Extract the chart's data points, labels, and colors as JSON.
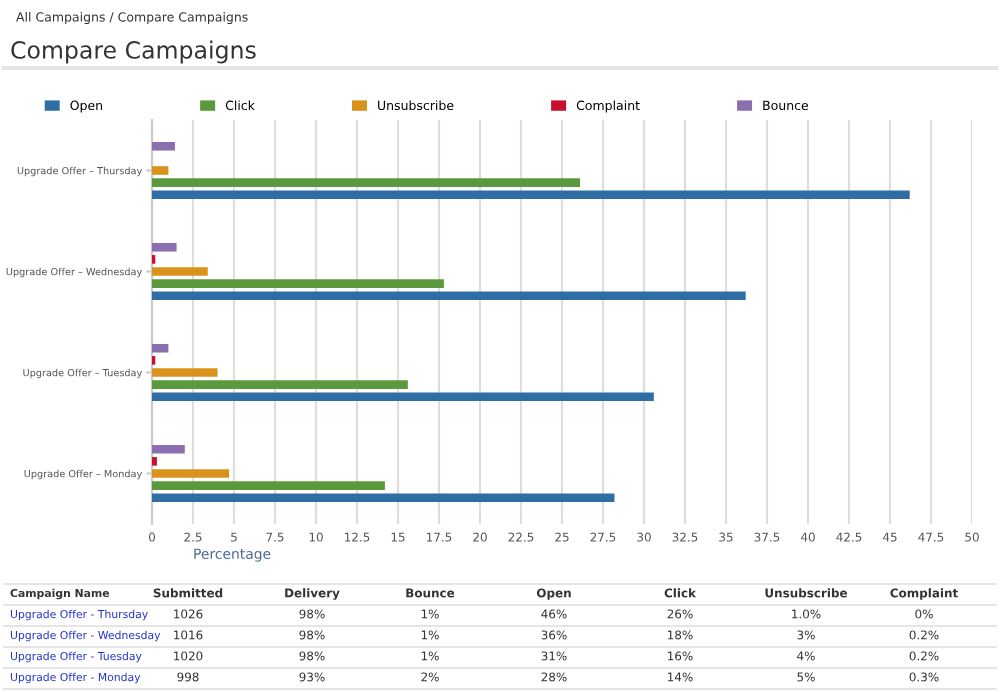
{
  "chart_data": {
    "type": "bar",
    "orientation": "horizontal",
    "title": "Compare Campaigns",
    "xlabel": "Percentage",
    "categories": [
      "Upgrade Offer – Thursday",
      "Upgrade Offer – Wednesday",
      "Upgrade Offer – Tuesday",
      "Upgrade Offer – Monday"
    ],
    "series": [
      {
        "name": "Open",
        "color": "#2f6ea5",
        "values": [
          46.2,
          36.2,
          30.6,
          28.2
        ]
      },
      {
        "name": "Click",
        "color": "#5b9a3c",
        "values": [
          26.1,
          17.8,
          15.6,
          14.2
        ]
      },
      {
        "name": "Unsubscribe",
        "color": "#d9921c",
        "values": [
          1.0,
          3.4,
          4.0,
          4.7
        ]
      },
      {
        "name": "Complaint",
        "color": "#c8102e",
        "values": [
          0,
          0.2,
          0.2,
          0.3
        ]
      },
      {
        "name": "Bounce",
        "color": "#8a6fb0",
        "values": [
          1.4,
          1.5,
          1.0,
          2.0
        ]
      }
    ],
    "xlim": [
      0,
      50
    ],
    "xticks": [
      0,
      {
        "value": 2.5,
        "label": "2.5"
      },
      5,
      {
        "value": 7.5,
        "label": "7.5"
      },
      10,
      {
        "value": 12.5,
        "label": "12.5"
      },
      15,
      {
        "value": 17.5,
        "label": "17.5"
      },
      20,
      {
        "value": 22.5,
        "label": "22.5"
      },
      25,
      {
        "value": 27.5,
        "label": "27.5"
      },
      30,
      {
        "value": 32.5,
        "label": "32.5"
      },
      35,
      {
        "value": 37.5,
        "label": "37.5"
      },
      40,
      {
        "value": 42.5,
        "label": "42.5"
      },
      45,
      {
        "value": 47.5,
        "label": "47.5"
      },
      50
    ],
    "grid": "x",
    "legend": "top",
    "annotations": [
      "All Campaigns / Compare Campaigns",
      "Campaign Name",
      "Submitted",
      "Delivery",
      "Bounce",
      "Open",
      "Click",
      "Unsubscribe",
      "Complaint",
      "Upgrade Offer - Thursday",
      "1026",
      "98%",
      "1%",
      "46%",
      "26%",
      "1.0%",
      "0%",
      "Upgrade Offer - Wednesday",
      "1016",
      "98%",
      "1%",
      "36%",
      "18%",
      "3%",
      "0.2%",
      "Upgrade Offer - Tuesday",
      "1020",
      "98%",
      "1%",
      "31%",
      "16%",
      "4%",
      "0.2%",
      "Upgrade Offer - Monday",
      "998",
      "93%",
      "2%",
      "28%",
      "14%",
      "5%",
      "0.3%"
    ]
  }
}
